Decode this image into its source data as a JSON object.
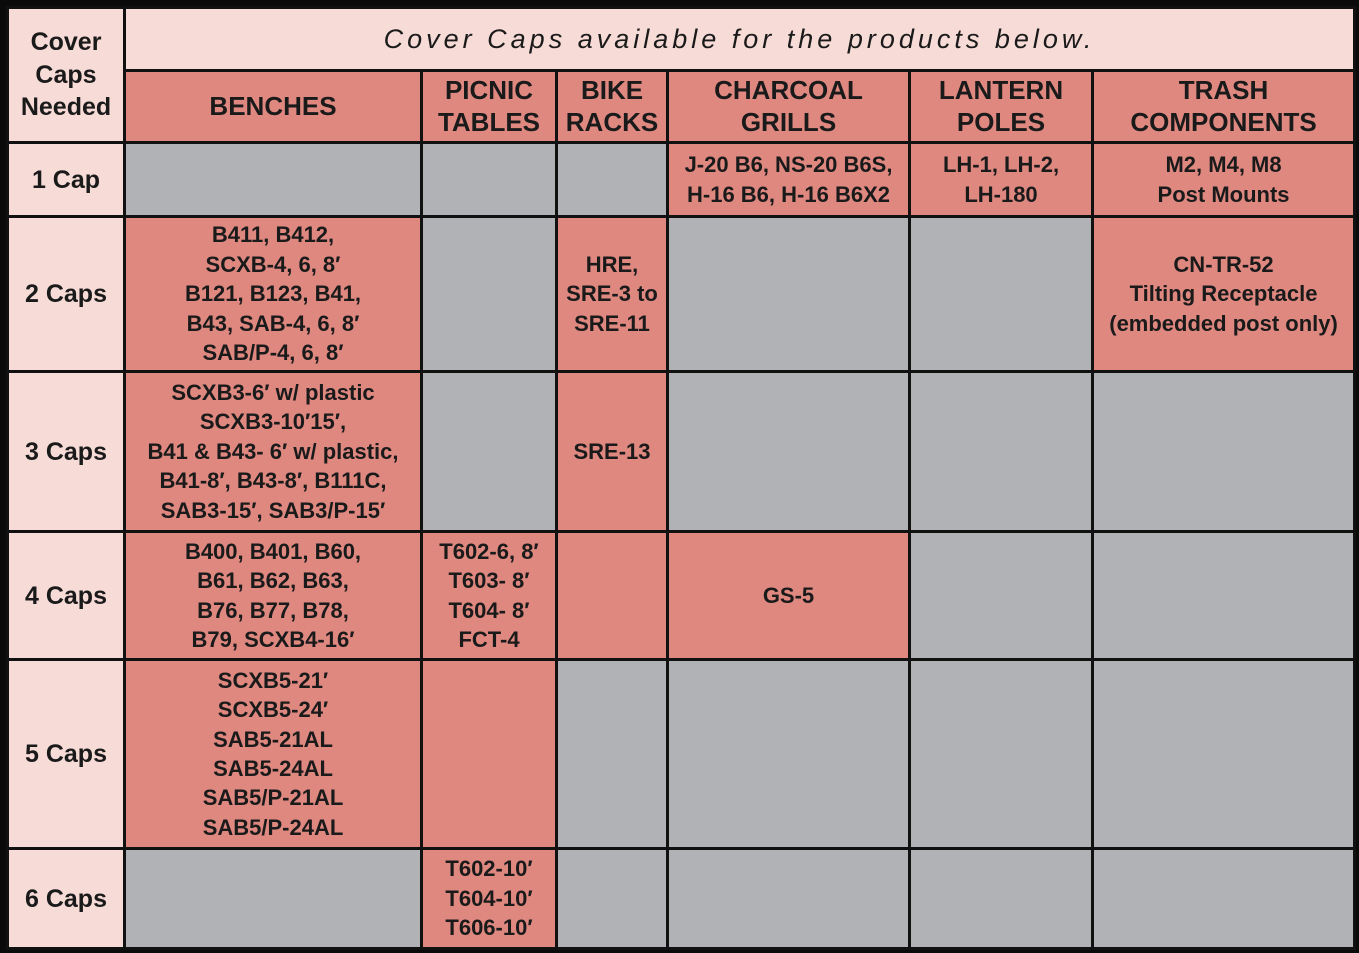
{
  "corner_label": "Cover\nCaps\nNeeded",
  "banner": "Cover Caps available for the products below.",
  "columns": [
    "BENCHES",
    "PICNIC\nTABLES",
    "BIKE\nRACKS",
    "CHARCOAL\nGRILLS",
    "LANTERN\nPOLES",
    "TRASH\nCOMPONENTS"
  ],
  "rows": [
    {
      "label": "1 Cap",
      "benches": "",
      "picnic_tables": "",
      "bike_racks": "",
      "charcoal_grills": "J-20 B6, NS-20 B6S,\nH-16 B6, H-16 B6X2",
      "lantern_poles": "LH-1, LH-2,\nLH-180",
      "trash_components": "M2, M4, M8\nPost Mounts"
    },
    {
      "label": "2 Caps",
      "benches": "B411, B412,\nSCXB-4, 6, 8′\nB121, B123, B41,\nB43, SAB-4, 6, 8′\nSAB/P-4, 6, 8′",
      "picnic_tables": "",
      "bike_racks": "HRE,\nSRE-3 to\nSRE-11",
      "charcoal_grills": "",
      "lantern_poles": "",
      "trash_components": "CN-TR-52\nTilting Receptacle\n(embedded post only)"
    },
    {
      "label": "3 Caps",
      "benches": "SCXB3-6′ w/ plastic\nSCXB3-10′15′,\nB41 & B43- 6′ w/ plastic,\nB41-8′, B43-8′, B111C,\nSAB3-15′, SAB3/P-15′",
      "picnic_tables": "",
      "bike_racks": "SRE-13",
      "charcoal_grills": "",
      "lantern_poles": "",
      "trash_components": ""
    },
    {
      "label": "4 Caps",
      "benches": "B400, B401, B60,\nB61, B62, B63,\nB76, B77, B78,\nB79, SCXB4-16′",
      "picnic_tables": "T602-6, 8′\nT603- 8′\nT604- 8′\nFCT-4",
      "bike_racks": "",
      "charcoal_grills": "GS-5",
      "lantern_poles": "",
      "trash_components": ""
    },
    {
      "label": "5 Caps",
      "benches": "SCXB5-21′\nSCXB5-24′\nSAB5-21AL\nSAB5-24AL\nSAB5/P-21AL\nSAB5/P-24AL",
      "picnic_tables": "",
      "bike_racks": "",
      "charcoal_grills": "",
      "lantern_poles": "",
      "trash_components": ""
    },
    {
      "label": "6 Caps",
      "benches": "",
      "picnic_tables": "T602-10′\nT604-10′\nT606-10′",
      "bike_racks": "",
      "charcoal_grills": "",
      "lantern_poles": "",
      "trash_components": ""
    }
  ],
  "colors": {
    "header_light": "#f6dbd6",
    "available": "#de8880",
    "not_available": "#b1b2b5",
    "border": "#111111"
  }
}
